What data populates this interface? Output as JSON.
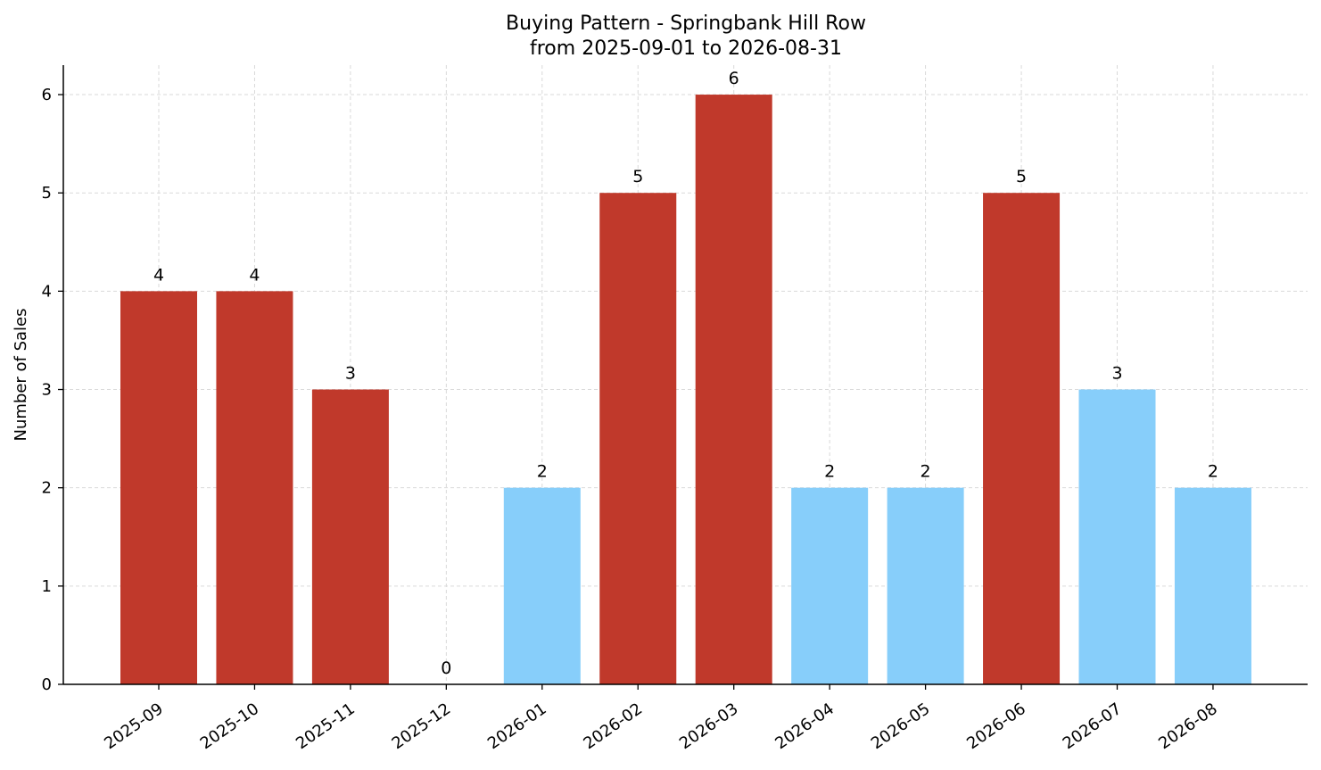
{
  "chart_data": {
    "type": "bar",
    "title": "Buying Pattern - Springbank Hill Row",
    "subtitle": "from 2025-09-01 to 2026-08-31",
    "xlabel": "",
    "ylabel": "Number of Sales",
    "categories": [
      "2025-09",
      "2025-10",
      "2025-11",
      "2025-12",
      "2026-01",
      "2026-02",
      "2026-03",
      "2026-04",
      "2026-05",
      "2026-06",
      "2026-07",
      "2026-08"
    ],
    "values": [
      4,
      4,
      3,
      0,
      2,
      5,
      6,
      2,
      2,
      5,
      3,
      2
    ],
    "highlight": [
      true,
      true,
      true,
      false,
      false,
      true,
      true,
      false,
      false,
      true,
      false,
      false
    ],
    "ylim": [
      0,
      6.3
    ],
    "yticks": [
      0,
      1,
      2,
      3,
      4,
      5,
      6
    ],
    "grid": true,
    "colors": {
      "highlight": "#c0392b",
      "normal": "#87cefa",
      "grid": "#d9d9d9"
    }
  }
}
